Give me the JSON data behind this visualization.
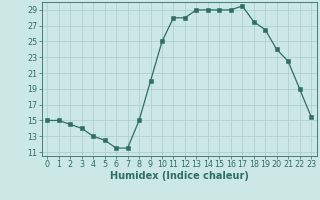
{
  "x": [
    0,
    1,
    2,
    3,
    4,
    5,
    6,
    7,
    8,
    9,
    10,
    11,
    12,
    13,
    14,
    15,
    16,
    17,
    18,
    19,
    20,
    21,
    22,
    23
  ],
  "y": [
    15,
    15,
    14.5,
    14,
    13,
    12.5,
    11.5,
    11.5,
    15,
    20,
    25,
    28,
    28,
    29,
    29,
    29,
    29,
    29.5,
    27.5,
    26.5,
    24,
    22.5,
    19,
    15.5
  ],
  "line_color": "#2e6e63",
  "marker_color": "#2e6e63",
  "bg_color": "#cce8e4",
  "grid_color": "#aaccca",
  "xlabel": "Humidex (Indice chaleur)",
  "ylim": [
    10.5,
    30.0
  ],
  "yticks": [
    11,
    13,
    15,
    17,
    19,
    21,
    23,
    25,
    27,
    29
  ],
  "xticks": [
    0,
    1,
    2,
    3,
    4,
    5,
    6,
    7,
    8,
    9,
    10,
    11,
    12,
    13,
    14,
    15,
    16,
    17,
    18,
    19,
    20,
    21,
    22,
    23
  ],
  "font_color": "#2e6e63",
  "tick_fontsize": 5.8,
  "label_fontsize": 7.0
}
